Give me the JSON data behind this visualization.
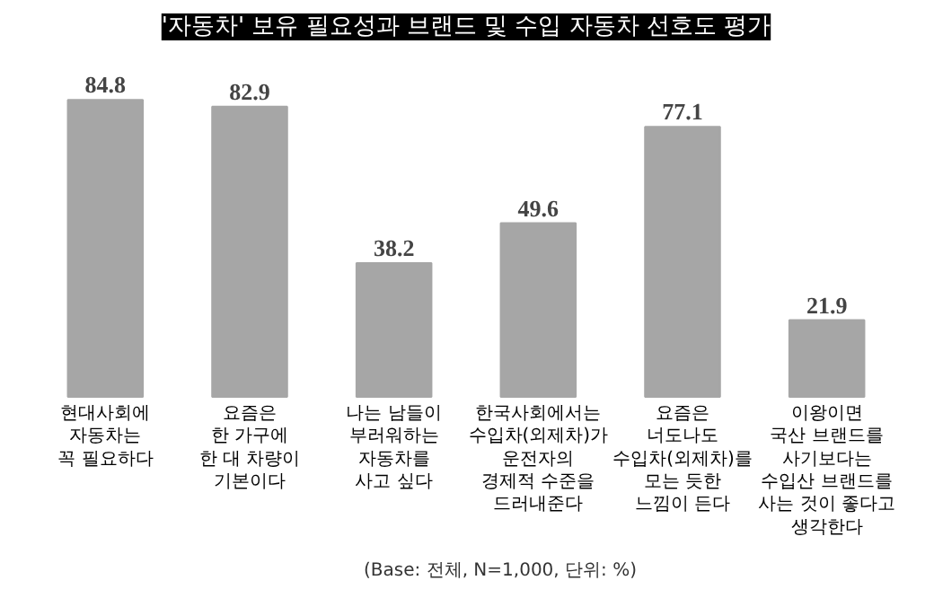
{
  "chart_data": {
    "type": "bar",
    "title": "'자동차' 보유 필요성과 브랜드 및 수입 자동차 선호도 평가",
    "categories": [
      "현대사회에\n자동차는\n꼭 필요하다",
      "요즘은\n한 가구에\n한 대 차량이\n기본이다",
      "나는 남들이\n부러워하는\n자동차를\n사고 싶다",
      "한국사회에서는\n수입차(외제차)가\n운전자의\n경제적 수준을\n드러내준다",
      "요즘은\n너도나도\n수입차(외제차)를\n모는 듯한\n느낌이 든다",
      "이왕이면\n국산 브랜드를\n사기보다는\n수입산 브랜드를\n사는 것이 좋다고\n생각한다"
    ],
    "values": [
      84.8,
      82.9,
      38.2,
      49.6,
      77.1,
      21.9
    ],
    "color": "#a6a6a6",
    "data_labels": true,
    "grid": false,
    "annotations": [
      "(Base: 전체, N=1,000, 단위: %)"
    ]
  }
}
